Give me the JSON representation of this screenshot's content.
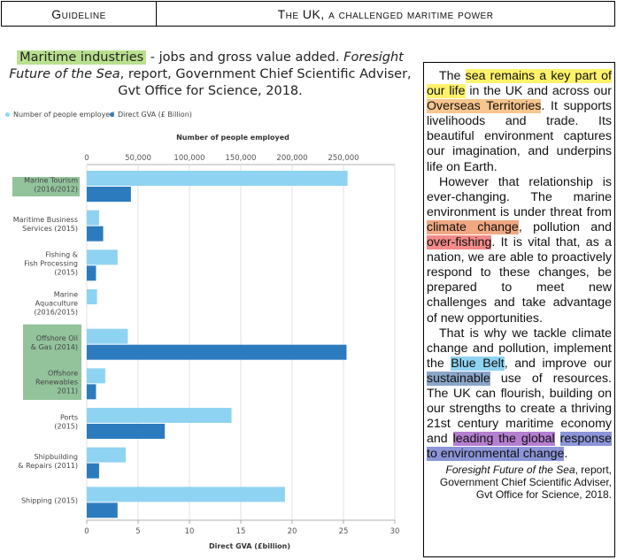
{
  "header": {
    "left": "Guideline",
    "right": "The UK, a challenged maritime power"
  },
  "figure": {
    "title_highlight": "Maritime industries",
    "title_rest": " - jobs and gross value added. ",
    "title_italic": "Foresight Future of the Sea",
    "title_tail": ", report, Government Chief Scientific Adviser, Gvt Office for Science, 2018."
  },
  "legend": {
    "employed": "Number of people employed",
    "gva": "Direct GVA (£ Billion)"
  },
  "colors": {
    "employed": "#8fd3f2",
    "gva": "#2c7bbf",
    "highlight_box": "#7fb88a"
  },
  "chart_data": {
    "type": "bar",
    "orientation": "horizontal",
    "categories": [
      [
        "Marine Tourism",
        "(2016/2012)"
      ],
      [
        "Maritime Business",
        "Services (2015)"
      ],
      [
        "Fishing &",
        "Fish Processing",
        "(2015)"
      ],
      [
        "Marine",
        "Aquaculture",
        "(2016/2015)"
      ],
      [
        "Offshore Oil",
        "& Gas (2014)"
      ],
      [
        "Offshore",
        "Renewables",
        "2011)"
      ],
      [
        "Ports",
        "(2015)"
      ],
      [
        "Shipbuilding",
        "& Repairs (2011)"
      ],
      [
        "Shipping (2015)"
      ]
    ],
    "highlighted_categories": [
      0,
      4,
      5
    ],
    "series": [
      {
        "name": "Number of people employed",
        "axis": "top",
        "values": [
          254000,
          12000,
          30000,
          10000,
          40000,
          18000,
          141000,
          38000,
          193000
        ]
      },
      {
        "name": "Direct GVA (£ Billion)",
        "axis": "bottom",
        "values": [
          4.3,
          1.6,
          0.9,
          0.0,
          25.3,
          0.9,
          7.6,
          1.2,
          3.0
        ]
      }
    ],
    "top_axis": {
      "label": "Number of people employed",
      "range": [
        0,
        250000
      ],
      "ticks": [
        "0",
        "50,000",
        "100,000",
        "150,000",
        "200,000",
        "250,000"
      ]
    },
    "bottom_axis": {
      "label": "Direct GVA (£billion)",
      "range": [
        0,
        30
      ],
      "ticks": [
        "0",
        "5",
        "10",
        "15",
        "20",
        "25",
        "30"
      ]
    },
    "grid": true
  },
  "text": {
    "p1": [
      "The ",
      "sea remains a key part of our life",
      " in the UK and across our ",
      "Overseas Territories",
      ". It supports livelihoods and trade. Its beautiful environment captures our imagination, and underpins life on Earth."
    ],
    "p2": [
      "However that relationship is ever-changing. The marine environment is under threat from ",
      "climate change",
      ", pollution and ",
      "over-fishing",
      ". It is vital that, as a nation, we are able to proactively respond to these changes, be prepared to meet new challenges and take advantage of new opportunities."
    ],
    "p3": [
      "That is why we tackle climate change and pollution, implement the ",
      "Blue Belt",
      ", and improve our ",
      "sustainable",
      " use of resources. The UK can flourish, building on our strengths to create a thriving 21st century maritime economy and ",
      "leading the global",
      " ",
      "response to environmental change",
      "."
    ],
    "source_italic": "Foresight Future of the Sea",
    "source_rest": ", report, Government Chief Scientific Adviser, Gvt Office for Science, 2018."
  }
}
